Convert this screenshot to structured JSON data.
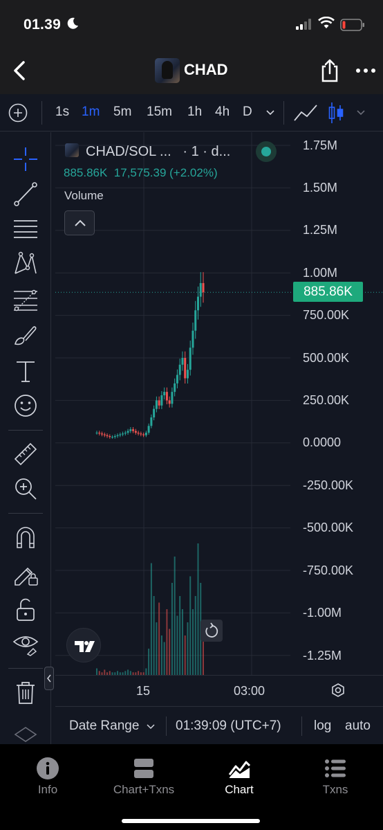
{
  "status": {
    "time": "01.39"
  },
  "nav": {
    "title": "CHAD"
  },
  "timeframes": [
    {
      "label": "1s",
      "active": false
    },
    {
      "label": "1m",
      "active": true
    },
    {
      "label": "5m",
      "active": false
    },
    {
      "label": "15m",
      "active": false
    },
    {
      "label": "1h",
      "active": false
    },
    {
      "label": "4h",
      "active": false
    },
    {
      "label": "D",
      "active": false
    }
  ],
  "legend": {
    "title": "CHAD/SOL ...",
    "interval": "· 1 · d...",
    "price": "885.86K",
    "change": "17,575.39 (+2.02%)",
    "volume_label": "Volume"
  },
  "price_tag": "885.86K",
  "colors": {
    "up": "#26a69a",
    "down": "#ef5350",
    "accent": "#2962ff",
    "price_tag": "#1ea97c"
  },
  "chart_data": {
    "type": "candlestick",
    "symbol": "CHAD/SOL",
    "interval": "1m",
    "last_price": 885860,
    "y_ticks": [
      "1.75M",
      "1.50M",
      "1.25M",
      "1.00M",
      "750.00K",
      "500.00K",
      "250.00K",
      "0.0000",
      "-250.00K",
      "-500.00K",
      "-750.00K",
      "-1.00M",
      "-1.25M"
    ],
    "ylim": [
      -1300000,
      1750000
    ],
    "x_ticks": [
      "15",
      "03:00"
    ],
    "x_tick_values": [
      0.27,
      0.6
    ],
    "legend": "top-left",
    "grid": true,
    "close": [
      60000,
      55000,
      50000,
      45000,
      40000,
      35000,
      35000,
      40000,
      45000,
      50000,
      55000,
      60000,
      70000,
      80000,
      70000,
      60000,
      55000,
      50000,
      45000,
      60000,
      100000,
      150000,
      200000,
      250000,
      220000,
      280000,
      300000,
      250000,
      230000,
      300000,
      350000,
      400000,
      460000,
      500000,
      380000,
      430000,
      560000,
      660000,
      780000,
      860000,
      940000,
      885860
    ],
    "volume": [
      0.05,
      0.03,
      0.02,
      0.04,
      0.02,
      0.03,
      0.02,
      0.02,
      0.03,
      0.02,
      0.02,
      0.03,
      0.04,
      0.03,
      0.02,
      0.02,
      0.03,
      0.02,
      0.02,
      0.05,
      0.2,
      0.85,
      0.6,
      0.4,
      0.55,
      0.3,
      0.25,
      0.5,
      0.35,
      0.7,
      0.9,
      0.45,
      0.6,
      0.5,
      0.3,
      0.4,
      0.75,
      0.5,
      0.6,
      1.0,
      0.7,
      0.4
    ]
  },
  "x_axis": {
    "labels": [
      "15",
      "03:00"
    ]
  },
  "bottom_bar": {
    "date_range": "Date Range",
    "time": "01:39:09 (UTC+7)",
    "log": "log",
    "auto": "auto"
  },
  "tabs": [
    {
      "label": "Info",
      "icon": "info-icon",
      "active": false
    },
    {
      "label": "Chart+Txns",
      "icon": "split-view-icon",
      "active": false
    },
    {
      "label": "Chart",
      "icon": "chart-icon",
      "active": true
    },
    {
      "label": "Txns",
      "icon": "list-icon",
      "active": false
    }
  ]
}
